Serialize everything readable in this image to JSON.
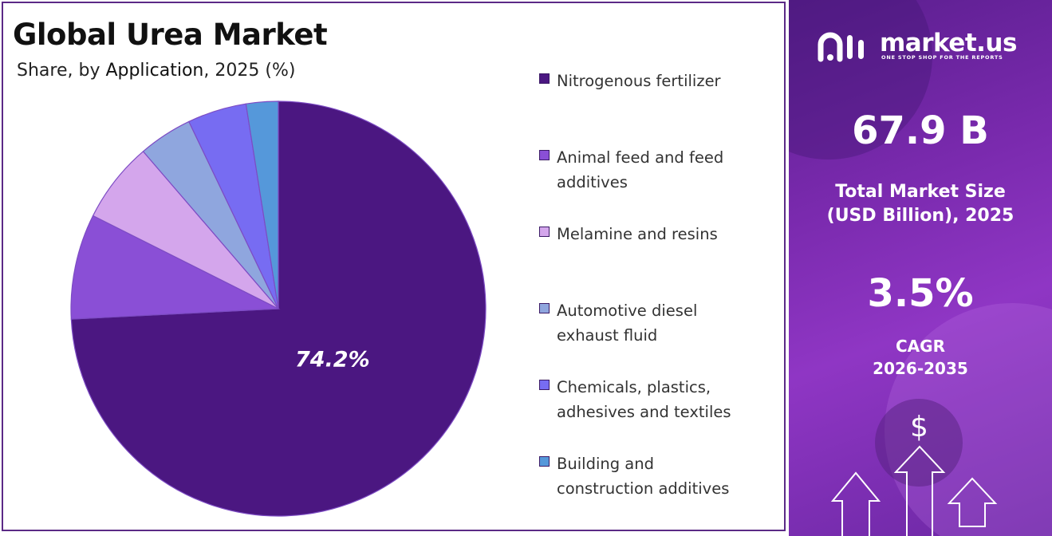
{
  "header": {
    "title": "Global Urea Market",
    "subtitle_prefix": "Share, by ",
    "subtitle_emph": "Application",
    "subtitle_suffix": ", 2025 (%)"
  },
  "chart_data": {
    "type": "pie",
    "title": "Global Urea Market",
    "subtitle": "Share, by Application, 2025 (%)",
    "categories": [
      "Nitrogenous fertilizer",
      "Animal feed and feed additives",
      "Melamine and resins",
      "Automotive diesel exhaust fluid",
      "Chemicals, plastics, adhesives and textiles",
      "Building and construction additives"
    ],
    "values": [
      74.2,
      8.2,
      6.3,
      4.2,
      4.6,
      2.5
    ],
    "colors": [
      "#4b1781",
      "#8a4fd6",
      "#d4a6ec",
      "#8fa6de",
      "#776cf2",
      "#5598da"
    ],
    "data_labels": [
      "74.2%",
      "",
      "",
      "",
      "",
      ""
    ],
    "legend_position": "right"
  },
  "legend": {
    "items": [
      {
        "line1": "Nitrogenous fertilizer",
        "line2": ""
      },
      {
        "line1": "Animal feed and feed",
        "line2": "additives"
      },
      {
        "line1": "Melamine and resins",
        "line2": ""
      },
      {
        "line1": "Automotive diesel",
        "line2": "exhaust fluid"
      },
      {
        "line1": "Chemicals, plastics,",
        "line2": "adhesives and textiles"
      },
      {
        "line1": "Building and",
        "line2": "construction additives"
      }
    ]
  },
  "side_panel": {
    "brand_name": "market.us",
    "brand_tagline": "ONE STOP SHOP FOR THE REPORTS",
    "market_size_value": "67.9 B",
    "market_size_label_line1": "Total Market Size",
    "market_size_label_line2": "(USD Billion), 2025",
    "cagr_value": "3.5%",
    "cagr_label_line1": "CAGR",
    "cagr_label_line2": "2026-2035",
    "currency_symbol": "$"
  },
  "colors": {
    "panel_border": "#5b2a86",
    "side_panel": "#7a2aae"
  }
}
